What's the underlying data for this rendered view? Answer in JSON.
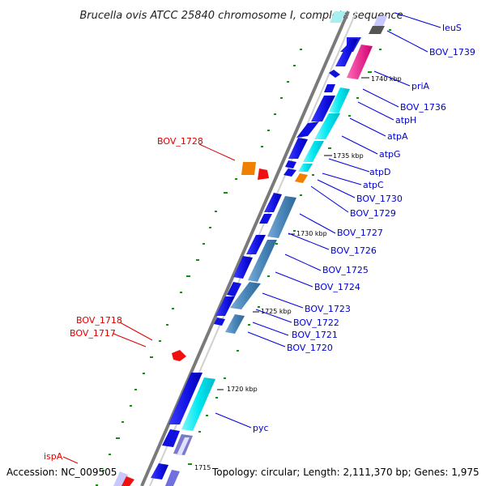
{
  "title": "Brucella ovis ATCC 25840 chromosome I, complete sequence",
  "footer": {
    "accession": "Accession: NC_009505",
    "summary": "Topology: circular; Length: 2,111,370 bp; Genes: 1,975"
  },
  "colors": {
    "backbone": "#8a8a8a",
    "cds": "#1010e0",
    "cyan": "#00e8f0",
    "steel": "#4a86b8",
    "magenta": "#f01890",
    "orange": "#f08000",
    "red": "#f01010",
    "green": "#1a8a1a",
    "label_blue": "#0000cc",
    "label_red": "#dd0000"
  },
  "ticks": [
    "1740 kbp",
    "1735 kbp",
    "1730 kbp",
    "1725 kbp",
    "1720 kbp",
    "1715"
  ],
  "labels_right": [
    "leuS",
    "BOV_1739",
    "priA",
    "BOV_1736",
    "atpH",
    "atpA",
    "atpG",
    "atpD",
    "atpC",
    "BOV_1730",
    "BOV_1729",
    "BOV_1727",
    "BOV_1726",
    "BOV_1725",
    "BOV_1724",
    "BOV_1723",
    "BOV_1722",
    "BOV_1721",
    "BOV_1720",
    "pyc"
  ],
  "labels_left": [
    "BOV_1728",
    "BOV_1718",
    "BOV_1717",
    "ispA"
  ]
}
